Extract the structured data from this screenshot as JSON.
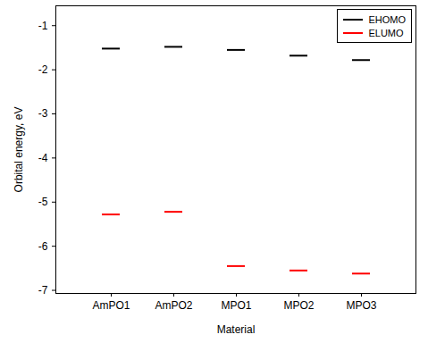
{
  "chart_data": {
    "type": "level",
    "x_label": "Material",
    "y_label": "Orbital energy, eV",
    "categories": [
      "AmPO1",
      "AmPO2",
      "MPO1",
      "MPO2",
      "MPO3"
    ],
    "series": [
      {
        "name": "EHOMO",
        "color": "#000000",
        "values": [
          -1.52,
          -1.48,
          -1.55,
          -1.68,
          -1.78
        ]
      },
      {
        "name": "ELUMO",
        "color": "#ff0000",
        "values": [
          -5.28,
          -5.22,
          -6.45,
          -6.55,
          -6.62
        ]
      }
    ],
    "ylim": [
      -7.07,
      -0.55
    ],
    "yticks": [
      -7,
      -6,
      -5,
      -4,
      -3,
      -2,
      -1
    ],
    "grid": false,
    "legend": "top-right"
  }
}
